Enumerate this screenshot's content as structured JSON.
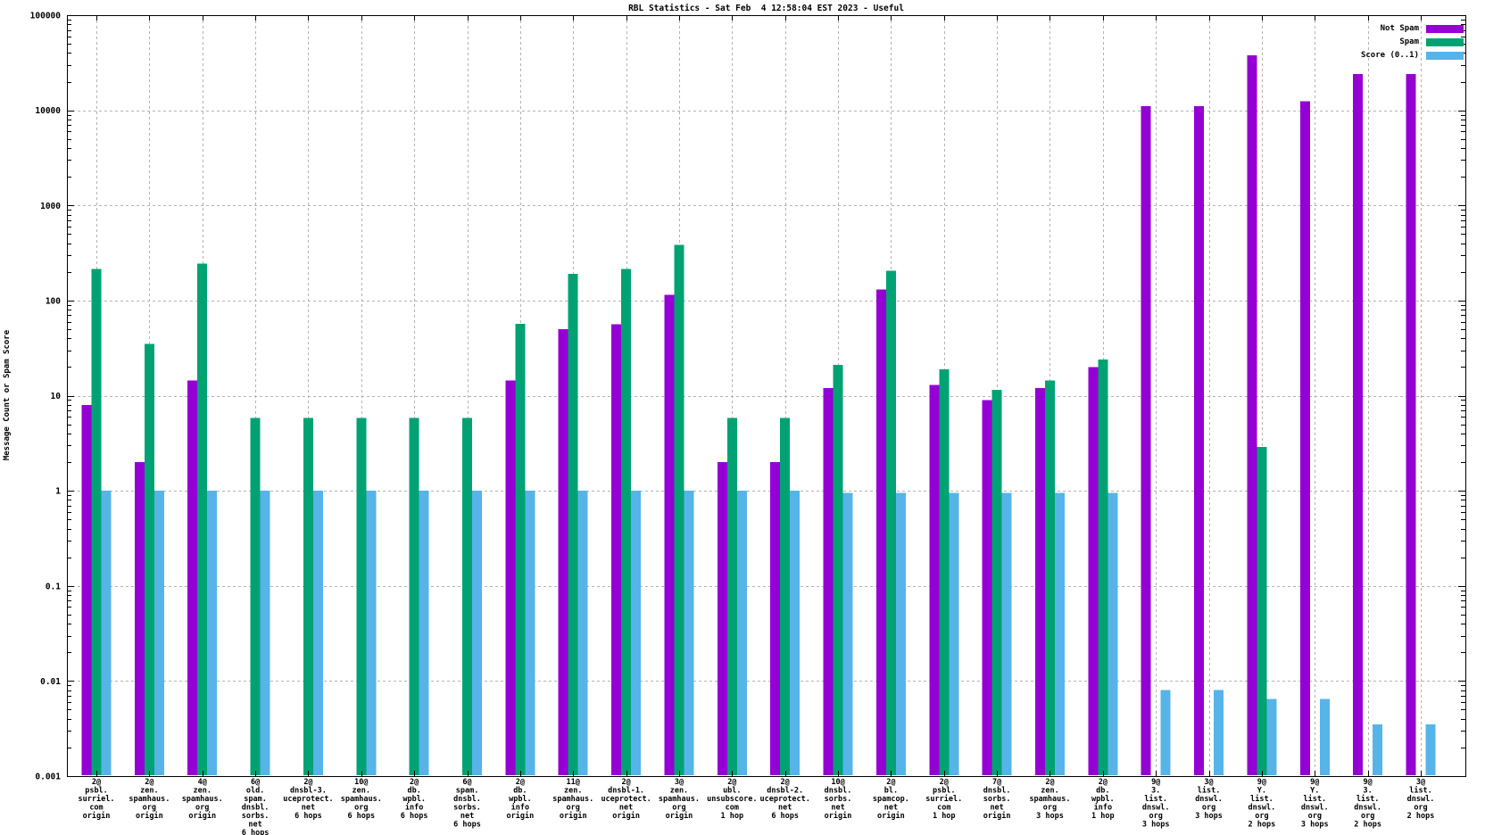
{
  "title": "RBL Statistics - Sat Feb  4 12:58:04 EST 2023 - Useful",
  "ylabel": "Message Count or Spam Score",
  "legend": [
    {
      "name": "not-spam",
      "label": "Not Spam",
      "color": "#9400D3"
    },
    {
      "name": "spam",
      "label": "Spam",
      "color": "#00A273"
    },
    {
      "name": "score",
      "label": "Score (0..1)",
      "color": "#56B4E9"
    }
  ],
  "chart_data": {
    "type": "bar",
    "yscale": "log",
    "ylim": [
      0.001,
      100000
    ],
    "ytick_labels": [
      "100000",
      "10000",
      "1000",
      "100",
      "10",
      "1",
      "0.1",
      "0.01",
      "0.001"
    ],
    "grid": true,
    "legend_position": "top-right",
    "categories": [
      [
        "2@",
        "psbl.",
        "surriel.",
        "com",
        "origin"
      ],
      [
        "2@",
        "zen.",
        "spamhaus.",
        "org",
        "origin"
      ],
      [
        "4@",
        "zen.",
        "spamhaus.",
        "org",
        "origin"
      ],
      [
        "6@",
        "old.",
        "spam.",
        "dnsbl.",
        "sorbs.",
        "net",
        "6 hops"
      ],
      [
        "2@",
        "dnsbl-3.",
        "uceprotect.",
        "net",
        "6 hops"
      ],
      [
        "10@",
        "zen.",
        "spamhaus.",
        "org",
        "6 hops"
      ],
      [
        "2@",
        "db.",
        "wpbl.",
        "info",
        "6 hops"
      ],
      [
        "6@",
        "spam.",
        "dnsbl.",
        "sorbs.",
        "net",
        "6 hops"
      ],
      [
        "2@",
        "db.",
        "wpbl.",
        "info",
        "origin"
      ],
      [
        "11@",
        "zen.",
        "spamhaus.",
        "org",
        "origin"
      ],
      [
        "2@",
        "dnsbl-1.",
        "uceprotect.",
        "net",
        "origin"
      ],
      [
        "3@",
        "zen.",
        "spamhaus.",
        "org",
        "origin"
      ],
      [
        "2@",
        "ubl.",
        "unsubscore.",
        "com",
        "1 hop"
      ],
      [
        "2@",
        "dnsbl-2.",
        "uceprotect.",
        "net",
        "6 hops"
      ],
      [
        "10@",
        "dnsbl.",
        "sorbs.",
        "net",
        "origin"
      ],
      [
        "2@",
        "bl.",
        "spamcop.",
        "net",
        "origin"
      ],
      [
        "2@",
        "psbl.",
        "surriel.",
        "com",
        "1 hop"
      ],
      [
        "7@",
        "dnsbl.",
        "sorbs.",
        "net",
        "origin"
      ],
      [
        "2@",
        "zen.",
        "spamhaus.",
        "org",
        "3 hops"
      ],
      [
        "2@",
        "db.",
        "wpbl.",
        "info",
        "1 hop"
      ],
      [
        "9@",
        "3.",
        "list.",
        "dnswl.",
        "org",
        "3 hops"
      ],
      [
        "3@",
        "list.",
        "dnswl.",
        "org",
        "3 hops"
      ],
      [
        "9@",
        "Y.",
        "list.",
        "dnswl.",
        "org",
        "2 hops"
      ],
      [
        "9@",
        "Y.",
        "list.",
        "dnswl.",
        "org",
        "3 hops"
      ],
      [
        "9@",
        "3.",
        "list.",
        "dnswl.",
        "org",
        "2 hops"
      ],
      [
        "3@",
        "list.",
        "dnswl.",
        "org",
        "2 hops"
      ]
    ],
    "series": [
      {
        "name": "Not Spam",
        "color": "#9400D3",
        "values": [
          8,
          2,
          14.5,
          null,
          null,
          null,
          null,
          null,
          14.5,
          50,
          56,
          115,
          2,
          2,
          12,
          130,
          13,
          9,
          12,
          20,
          11000,
          11000,
          38000,
          12500,
          24000,
          24000
        ]
      },
      {
        "name": "Spam",
        "color": "#00A273",
        "values": [
          215,
          35,
          245,
          5.8,
          5.8,
          5.8,
          5.8,
          5.8,
          57,
          190,
          215,
          385,
          5.8,
          5.8,
          21,
          205,
          19,
          11.5,
          14.5,
          24,
          null,
          null,
          2.9,
          null,
          null,
          null
        ]
      },
      {
        "name": "Score (0..1)",
        "color": "#56B4E9",
        "values": [
          1,
          1,
          1,
          1,
          1,
          1,
          1,
          1,
          1,
          1,
          1,
          1,
          1,
          1,
          0.95,
          0.95,
          0.95,
          0.95,
          0.95,
          0.95,
          0.008,
          0.008,
          0.0065,
          0.0065,
          0.0035,
          0.0035
        ]
      }
    ]
  }
}
